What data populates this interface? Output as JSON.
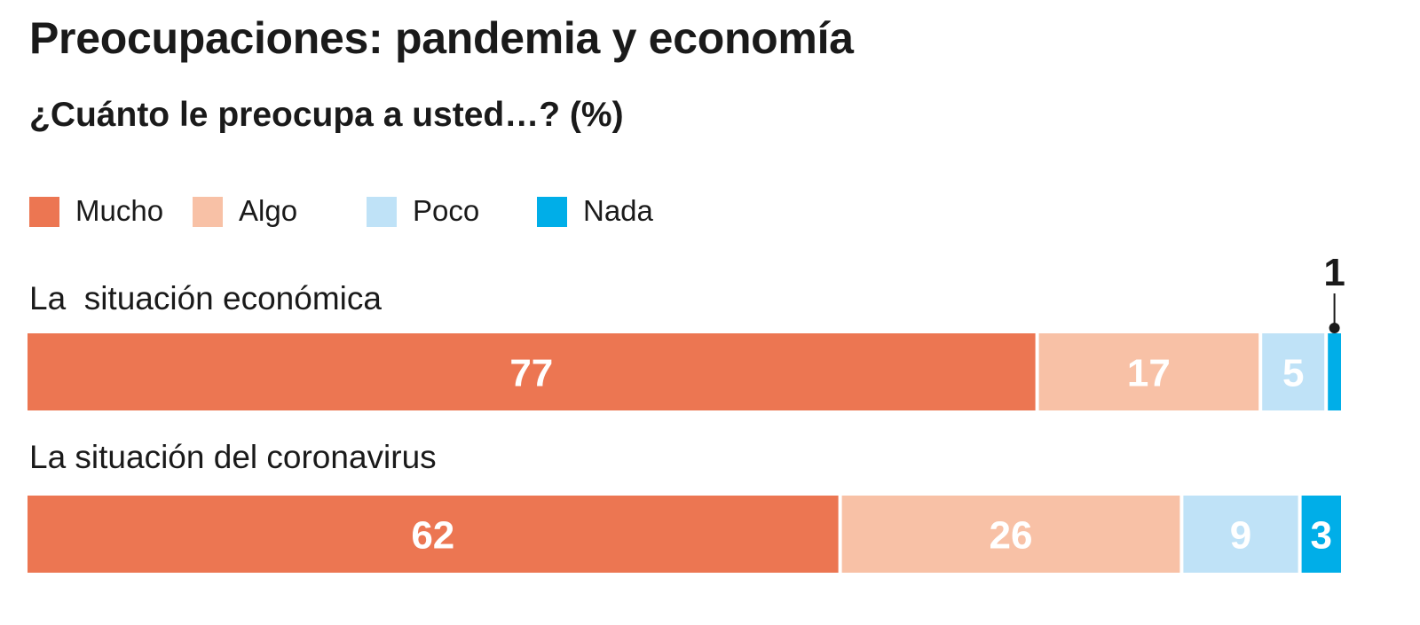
{
  "title": "Preocupaciones: pandemia y economía",
  "subtitle": "¿Cuánto le preocupa a usted…? (%)",
  "legend": [
    {
      "label": "Mucho",
      "color": "#ec7652"
    },
    {
      "label": "Algo",
      "color": "#f8c1a6"
    },
    {
      "label": "Poco",
      "color": "#bfe2f7"
    },
    {
      "label": "Nada",
      "color": "#00aee8"
    }
  ],
  "chart_data": {
    "type": "bar",
    "orientation": "horizontal",
    "stacked": true,
    "categories": [
      "La  situación económica",
      "La situación del coronavirus"
    ],
    "series": [
      {
        "name": "Mucho",
        "values": [
          77,
          62
        ]
      },
      {
        "name": "Algo",
        "values": [
          17,
          26
        ]
      },
      {
        "name": "Poco",
        "values": [
          5,
          9
        ]
      },
      {
        "name": "Nada",
        "values": [
          1,
          3
        ]
      }
    ],
    "xlim": [
      0,
      100
    ],
    "grid": false,
    "legend_position": "top-left"
  }
}
